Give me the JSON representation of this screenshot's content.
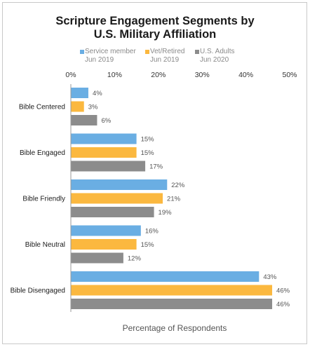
{
  "chart_data": {
    "type": "bar",
    "orientation": "horizontal",
    "title_lines": [
      "Scripture Engagement Segments by",
      "U.S. Military Affiliation"
    ],
    "categories": [
      "Bible Centered",
      "Bible Engaged",
      "Bible Friendly",
      "Bible Neutral",
      "Bible Disengaged"
    ],
    "series": [
      {
        "name": "Service member",
        "sub": "Jun 2019",
        "color": "#6aaee3",
        "values": [
          4,
          15,
          22,
          16,
          43
        ]
      },
      {
        "name": "Vet/Retired",
        "sub": "Jun 2019",
        "color": "#fbb83f",
        "values": [
          3,
          15,
          21,
          15,
          46
        ]
      },
      {
        "name": "U.S. Adults",
        "sub": "Jun 2020",
        "color": "#8c8c8c",
        "values": [
          6,
          17,
          19,
          12,
          46
        ]
      }
    ],
    "value_suffix": "%",
    "xlim": [
      0,
      50
    ],
    "x_ticks": [
      "0%",
      "10%",
      "20%",
      "30%",
      "40%",
      "50%"
    ],
    "x_tick_values": [
      0,
      10,
      20,
      30,
      40,
      50
    ],
    "xlabel": "Percentage of Respondents",
    "ylabel": "",
    "legend_position": "top",
    "grid": false
  }
}
